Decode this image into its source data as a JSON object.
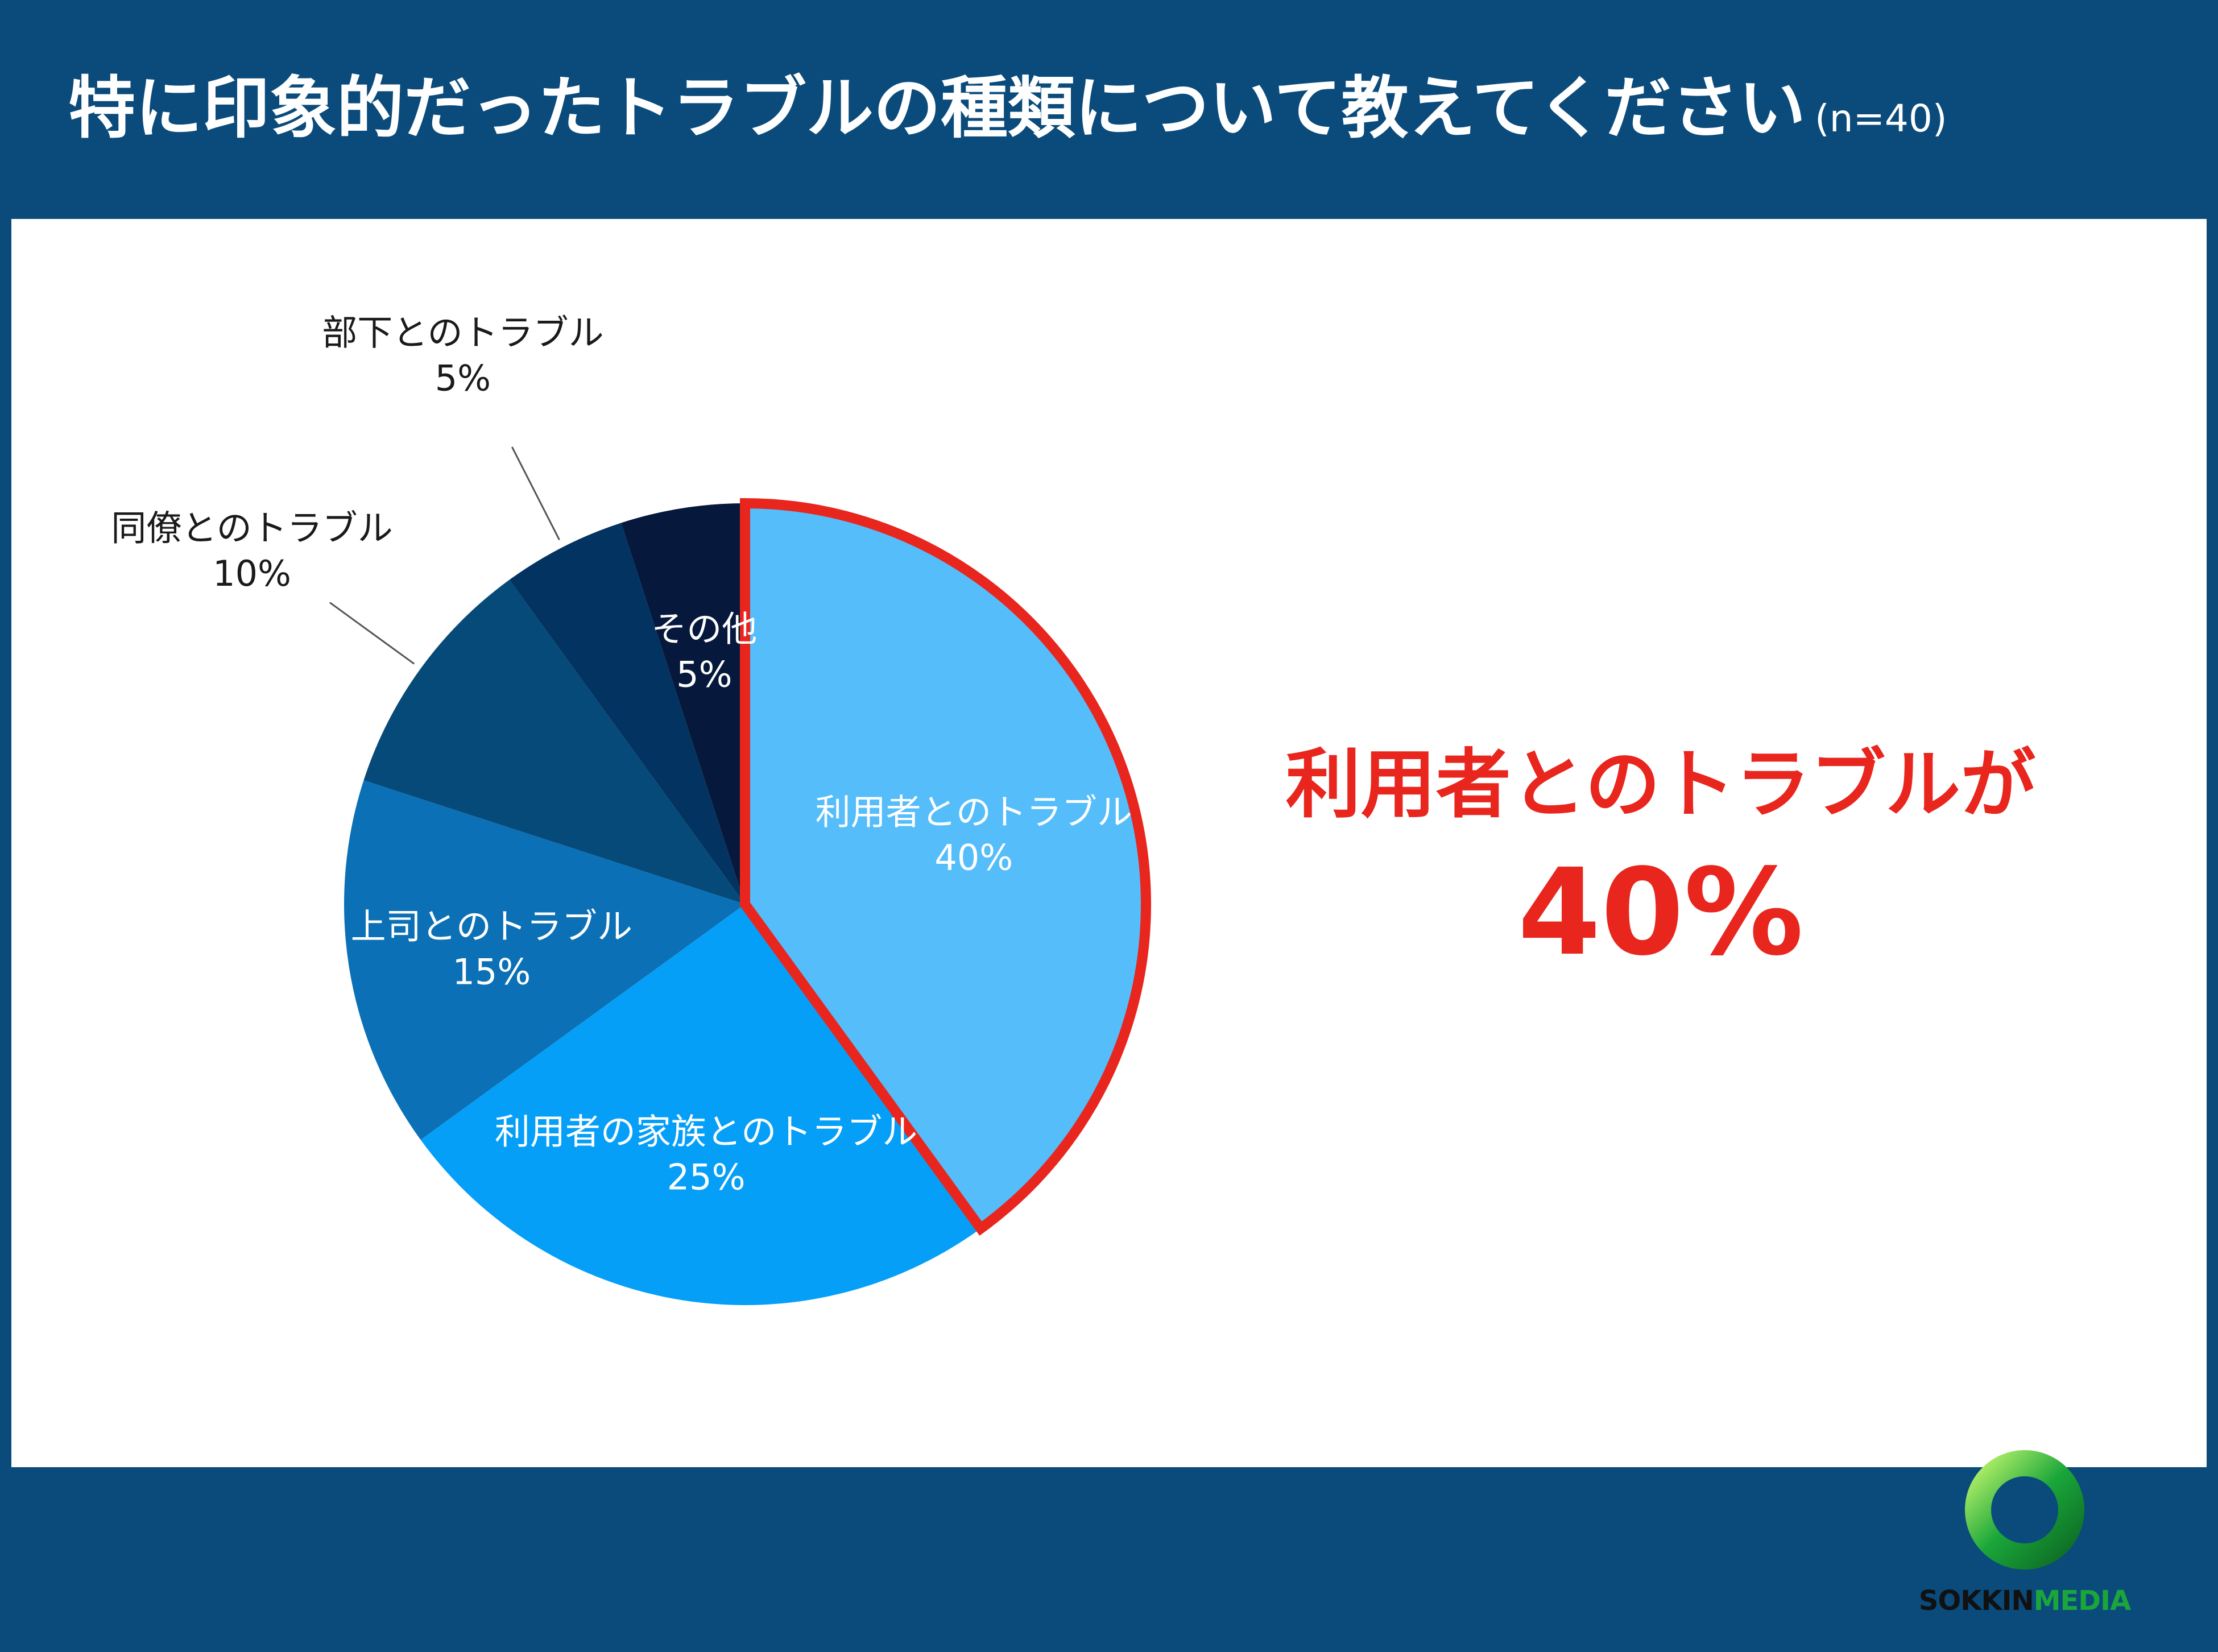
{
  "header": {
    "title": "特に印象的だったトラブルの種類について教えてください",
    "sample_size": "(n=40)"
  },
  "colors": {
    "header_bg": "#0a4b7c",
    "highlight": "#e8261e",
    "logo_green": "#1aa63a"
  },
  "chart_data": {
    "type": "pie",
    "title": "特に印象的だったトラブルの種類について教えてください",
    "categories": [
      "利用者とのトラブル",
      "利用者の家族とのトラブル",
      "上司とのトラブル",
      "同僚とのトラブル",
      "部下とのトラブル",
      "その他"
    ],
    "values": [
      40,
      25,
      15,
      10,
      5,
      5
    ],
    "value_labels": [
      "40%",
      "25%",
      "15%",
      "10%",
      "5%",
      "5%"
    ],
    "colors": [
      "#55bdfa",
      "#059ff8",
      "#0b70b6",
      "#054a78",
      "#033361",
      "#06183b"
    ],
    "highlighted_category": "利用者とのトラブル",
    "highlight_outline_color": "#e8261e",
    "label_colors": [
      "#ffffff",
      "#ffffff",
      "#ffffff",
      "#1a1a1a",
      "#1a1a1a",
      "#ffffff"
    ],
    "start_angle_deg": 0,
    "direction": "clockwise"
  },
  "highlight": {
    "text": "利用者とのトラブルが",
    "value": "40%"
  },
  "logo": {
    "word1": "SOKKIN",
    "word2": "MEDIA"
  }
}
